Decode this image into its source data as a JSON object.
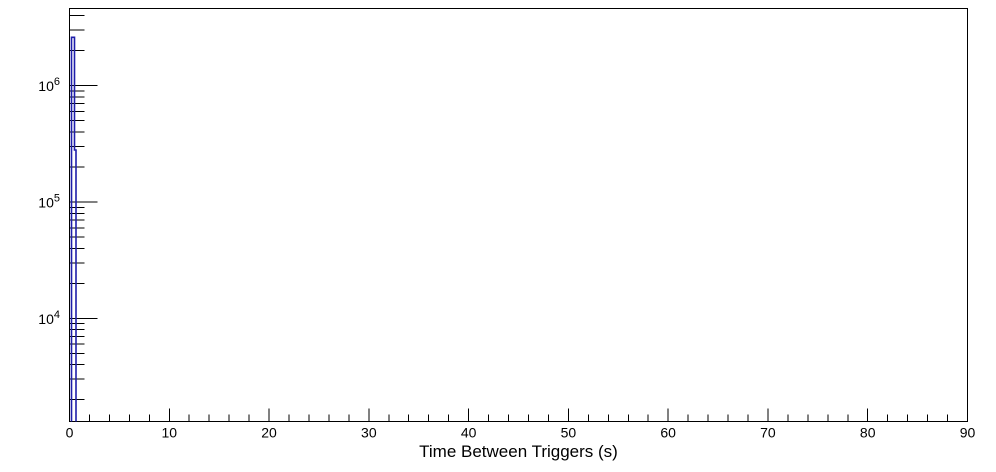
{
  "colors": {
    "background": "#ffffff",
    "axis": "#000000",
    "text": "#000000",
    "histogram_line": "#1e1eaa"
  },
  "chart_data": {
    "type": "histogram",
    "title": "",
    "xlabel": "Time Between Triggers (s)",
    "ylabel": "",
    "grid": false,
    "legend": false,
    "xlim": [
      0,
      90
    ],
    "yscale": "log",
    "ylim": [
      1300,
      4600000
    ],
    "x_major_ticks": [
      0,
      10,
      20,
      30,
      40,
      50,
      60,
      70,
      80,
      90
    ],
    "x_tick_labels": [
      "0",
      "10",
      "20",
      "30",
      "40",
      "50",
      "60",
      "70",
      "80",
      "90"
    ],
    "x_minor_step": 2,
    "y_labeled_decades": [
      4,
      5,
      6
    ],
    "y_label_base": "10",
    "series": [
      {
        "name": "time-between-triggers",
        "color": "#1e1eaa",
        "peak_entries": 2600000,
        "peak_x_range_s": [
          0.2,
          0.5
        ],
        "outline_points": [
          [
            0.2,
            1300
          ],
          [
            0.2,
            2600000
          ],
          [
            0.5,
            2600000
          ],
          [
            0.5,
            280000
          ],
          [
            0.65,
            280000
          ],
          [
            0.65,
            1300
          ]
        ]
      }
    ]
  }
}
